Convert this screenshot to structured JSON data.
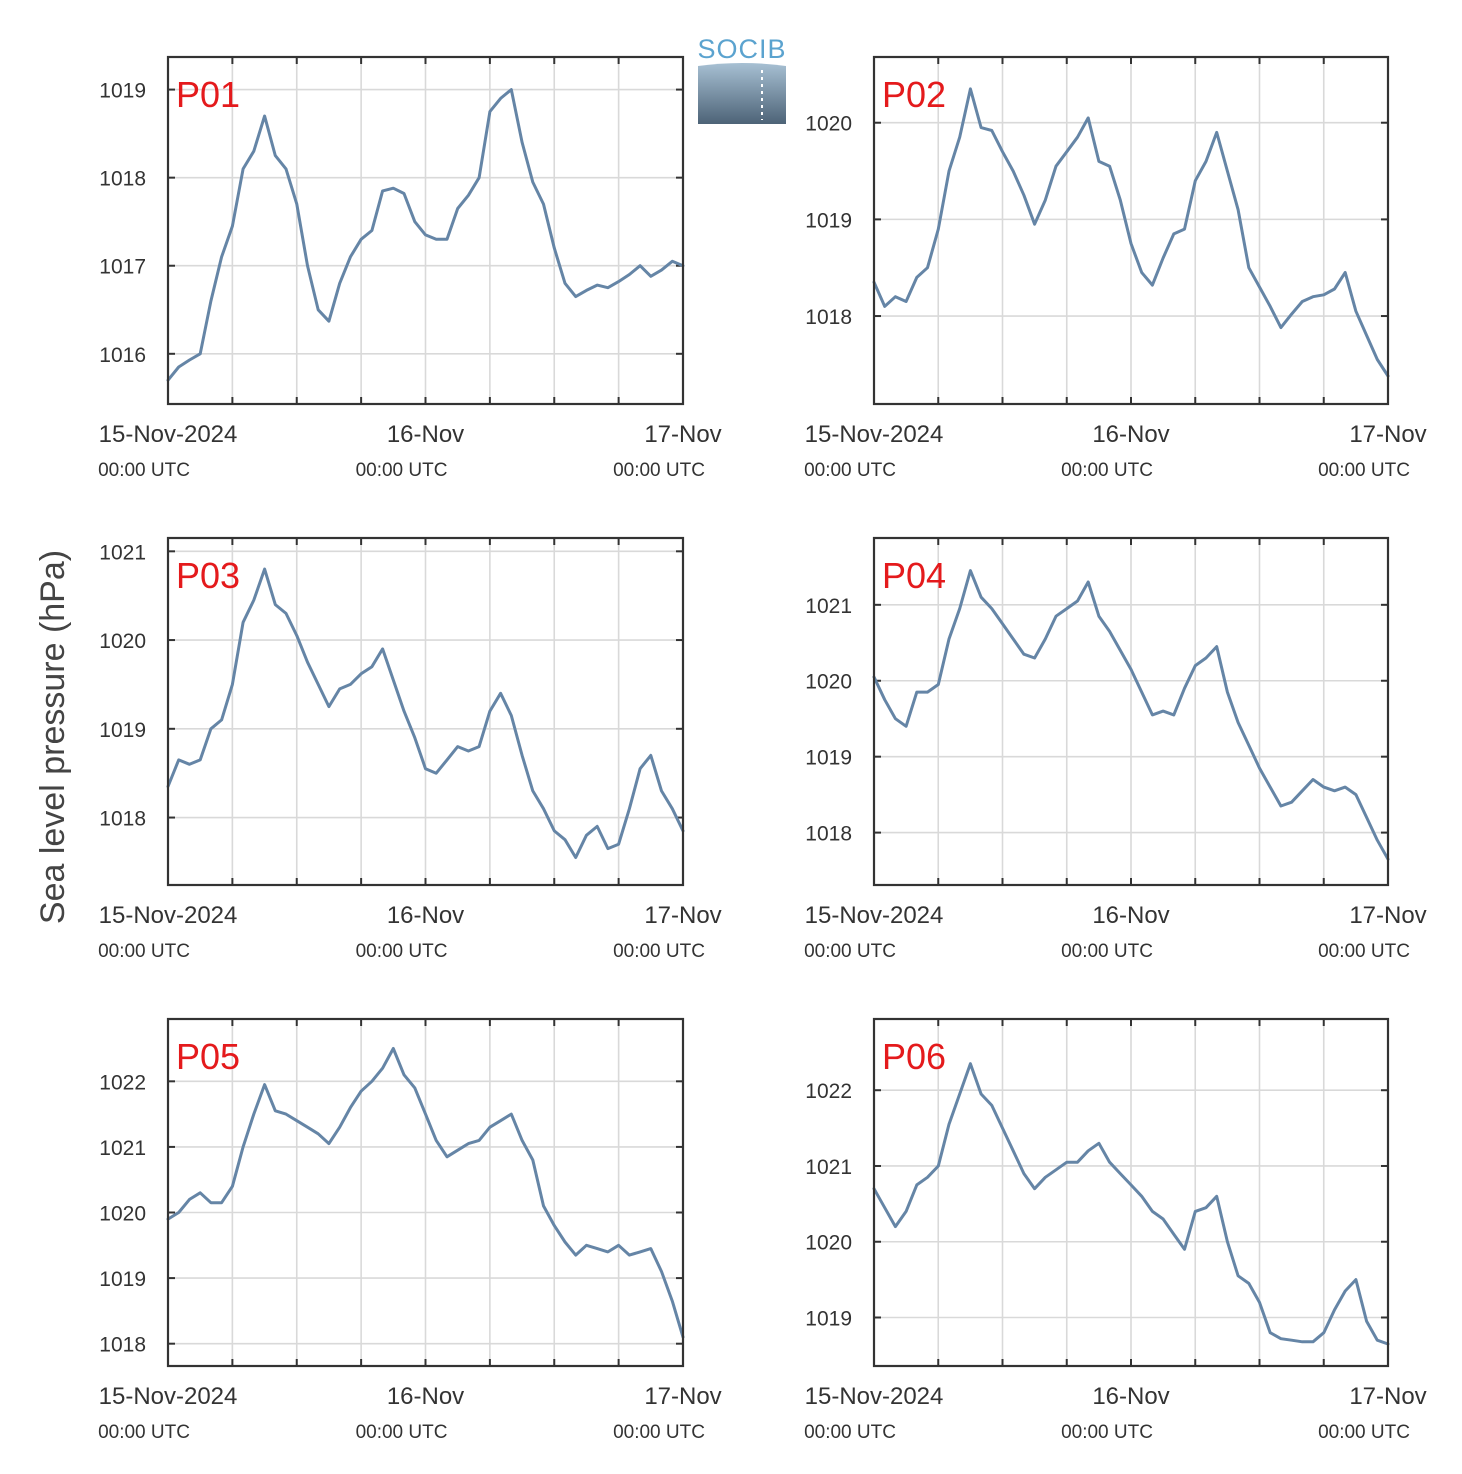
{
  "figure": {
    "ylabel": "Sea level pressure (hPa)",
    "logo_text": "SOCIB"
  },
  "chart_data": [
    {
      "type": "line",
      "title": "P01",
      "xlabel": "",
      "ylabel": "Sea level pressure (hPa)",
      "x_ticks": [
        {
          "label": "15-Nov-2024",
          "sub": "00:00 UTC",
          "hour": 0
        },
        {
          "label": "16-Nov",
          "sub": "00:00 UTC",
          "hour": 24
        },
        {
          "label": "17-Nov",
          "sub": "00:00 UTC",
          "hour": 48
        }
      ],
      "xlim": [
        0,
        48
      ],
      "ylim": [
        1015.43,
        1019.37
      ],
      "yticks": [
        1016,
        1017,
        1018,
        1019
      ],
      "grid": true,
      "series": [
        {
          "x": [
            0,
            1,
            2,
            3,
            4,
            5,
            6,
            7,
            8,
            9,
            10,
            11,
            12,
            13,
            14,
            15,
            16,
            17,
            18,
            19,
            20,
            21,
            22,
            23,
            24,
            25,
            26,
            27,
            28,
            29,
            30,
            31,
            32,
            33,
            34,
            35,
            36,
            37,
            38,
            39,
            40,
            41,
            42,
            43,
            44,
            45,
            46,
            47,
            48
          ],
          "y": [
            1015.7,
            1015.85,
            1015.93,
            1016.0,
            1016.6,
            1017.1,
            1017.45,
            1018.1,
            1018.3,
            1018.7,
            1018.25,
            1018.1,
            1017.7,
            1017.0,
            1016.5,
            1016.37,
            1016.8,
            1017.1,
            1017.3,
            1017.4,
            1017.85,
            1017.88,
            1017.82,
            1017.5,
            1017.35,
            1017.3,
            1017.3,
            1017.65,
            1017.8,
            1018.0,
            1018.75,
            1018.9,
            1019.0,
            1018.4,
            1017.95,
            1017.7,
            1017.2,
            1016.8,
            1016.65,
            1016.72,
            1016.78,
            1016.75,
            1016.82,
            1016.9,
            1017.0,
            1016.88,
            1016.95,
            1017.05,
            1017.0
          ]
        }
      ]
    },
    {
      "type": "line",
      "title": "P02",
      "xlabel": "",
      "ylabel": "Sea level pressure (hPa)",
      "x_ticks": [
        {
          "label": "15-Nov-2024",
          "sub": "00:00 UTC",
          "hour": 0
        },
        {
          "label": "16-Nov",
          "sub": "00:00 UTC",
          "hour": 24
        },
        {
          "label": "17-Nov",
          "sub": "00:00 UTC",
          "hour": 48
        }
      ],
      "xlim": [
        0,
        48
      ],
      "ylim": [
        1017.09,
        1020.68
      ],
      "yticks": [
        1018,
        1019,
        1020
      ],
      "grid": true,
      "series": [
        {
          "x": [
            0,
            1,
            2,
            3,
            4,
            5,
            6,
            7,
            8,
            9,
            10,
            11,
            12,
            13,
            14,
            15,
            16,
            17,
            18,
            19,
            20,
            21,
            22,
            23,
            24,
            25,
            26,
            27,
            28,
            29,
            30,
            31,
            32,
            33,
            34,
            35,
            36,
            37,
            38,
            39,
            40,
            41,
            42,
            43,
            44,
            45,
            46,
            47,
            48
          ],
          "y": [
            1018.35,
            1018.1,
            1018.2,
            1018.15,
            1018.4,
            1018.5,
            1018.9,
            1019.5,
            1019.85,
            1020.35,
            1019.95,
            1019.92,
            1019.7,
            1019.5,
            1019.25,
            1018.95,
            1019.2,
            1019.55,
            1019.7,
            1019.85,
            1020.05,
            1019.6,
            1019.55,
            1019.2,
            1018.75,
            1018.45,
            1018.32,
            1018.6,
            1018.85,
            1018.9,
            1019.4,
            1019.6,
            1019.9,
            1019.5,
            1019.1,
            1018.5,
            1018.3,
            1018.1,
            1017.88,
            1018.02,
            1018.15,
            1018.2,
            1018.22,
            1018.28,
            1018.45,
            1018.05,
            1017.8,
            1017.55,
            1017.38
          ]
        }
      ]
    },
    {
      "type": "line",
      "title": "P03",
      "xlabel": "",
      "ylabel": "Sea level pressure (hPa)",
      "x_ticks": [
        {
          "label": "15-Nov-2024",
          "sub": "00:00 UTC",
          "hour": 0
        },
        {
          "label": "16-Nov",
          "sub": "00:00 UTC",
          "hour": 24
        },
        {
          "label": "17-Nov",
          "sub": "00:00 UTC",
          "hour": 48
        }
      ],
      "xlim": [
        0,
        48
      ],
      "ylim": [
        1017.24,
        1021.15
      ],
      "yticks": [
        1018,
        1019,
        1020,
        1021
      ],
      "grid": true,
      "series": [
        {
          "x": [
            0,
            1,
            2,
            3,
            4,
            5,
            6,
            7,
            8,
            9,
            10,
            11,
            12,
            13,
            14,
            15,
            16,
            17,
            18,
            19,
            20,
            21,
            22,
            23,
            24,
            25,
            26,
            27,
            28,
            29,
            30,
            31,
            32,
            33,
            34,
            35,
            36,
            37,
            38,
            39,
            40,
            41,
            42,
            43,
            44,
            45,
            46,
            47,
            48
          ],
          "y": [
            1018.35,
            1018.65,
            1018.6,
            1018.65,
            1019.0,
            1019.1,
            1019.5,
            1020.2,
            1020.45,
            1020.8,
            1020.4,
            1020.3,
            1020.05,
            1019.75,
            1019.5,
            1019.25,
            1019.45,
            1019.5,
            1019.62,
            1019.7,
            1019.9,
            1019.55,
            1019.2,
            1018.9,
            1018.55,
            1018.5,
            1018.65,
            1018.8,
            1018.75,
            1018.8,
            1019.2,
            1019.4,
            1019.15,
            1018.7,
            1018.3,
            1018.1,
            1017.85,
            1017.75,
            1017.55,
            1017.8,
            1017.9,
            1017.65,
            1017.7,
            1018.1,
            1018.55,
            1018.7,
            1018.3,
            1018.1,
            1017.85
          ]
        }
      ]
    },
    {
      "type": "line",
      "title": "P04",
      "xlabel": "",
      "ylabel": "Sea level pressure (hPa)",
      "x_ticks": [
        {
          "label": "15-Nov-2024",
          "sub": "00:00 UTC",
          "hour": 0
        },
        {
          "label": "16-Nov",
          "sub": "00:00 UTC",
          "hour": 24
        },
        {
          "label": "17-Nov",
          "sub": "00:00 UTC",
          "hour": 48
        }
      ],
      "xlim": [
        0,
        48
      ],
      "ylim": [
        1017.31,
        1021.88
      ],
      "yticks": [
        1018,
        1019,
        1020,
        1021
      ],
      "grid": true,
      "series": [
        {
          "x": [
            0,
            1,
            2,
            3,
            4,
            5,
            6,
            7,
            8,
            9,
            10,
            11,
            12,
            13,
            14,
            15,
            16,
            17,
            18,
            19,
            20,
            21,
            22,
            23,
            24,
            25,
            26,
            27,
            28,
            29,
            30,
            31,
            32,
            33,
            34,
            35,
            36,
            37,
            38,
            39,
            40,
            41,
            42,
            43,
            44,
            45,
            46,
            47,
            48
          ],
          "y": [
            1020.05,
            1019.75,
            1019.5,
            1019.4,
            1019.85,
            1019.85,
            1019.95,
            1020.55,
            1020.95,
            1021.45,
            1021.1,
            1020.95,
            1020.75,
            1020.55,
            1020.35,
            1020.3,
            1020.55,
            1020.85,
            1020.95,
            1021.05,
            1021.3,
            1020.85,
            1020.65,
            1020.4,
            1020.15,
            1019.85,
            1019.55,
            1019.6,
            1019.55,
            1019.9,
            1020.2,
            1020.3,
            1020.45,
            1019.85,
            1019.45,
            1019.15,
            1018.85,
            1018.6,
            1018.35,
            1018.4,
            1018.55,
            1018.7,
            1018.6,
            1018.55,
            1018.6,
            1018.5,
            1018.2,
            1017.9,
            1017.65
          ]
        }
      ]
    },
    {
      "type": "line",
      "title": "P05",
      "xlabel": "",
      "ylabel": "Sea level pressure (hPa)",
      "x_ticks": [
        {
          "label": "15-Nov-2024",
          "sub": "00:00 UTC",
          "hour": 0
        },
        {
          "label": "16-Nov",
          "sub": "00:00 UTC",
          "hour": 24
        },
        {
          "label": "17-Nov",
          "sub": "00:00 UTC",
          "hour": 48
        }
      ],
      "xlim": [
        0,
        48
      ],
      "ylim": [
        1017.66,
        1022.95
      ],
      "yticks": [
        1018,
        1019,
        1020,
        1021,
        1022
      ],
      "grid": true,
      "series": [
        {
          "x": [
            0,
            1,
            2,
            3,
            4,
            5,
            6,
            7,
            8,
            9,
            10,
            11,
            12,
            13,
            14,
            15,
            16,
            17,
            18,
            19,
            20,
            21,
            22,
            23,
            24,
            25,
            26,
            27,
            28,
            29,
            30,
            31,
            32,
            33,
            34,
            35,
            36,
            37,
            38,
            39,
            40,
            41,
            42,
            43,
            44,
            45,
            46,
            47,
            48
          ],
          "y": [
            1019.9,
            1020.0,
            1020.2,
            1020.3,
            1020.15,
            1020.15,
            1020.4,
            1021.0,
            1021.5,
            1021.95,
            1021.55,
            1021.5,
            1021.4,
            1021.3,
            1021.2,
            1021.05,
            1021.3,
            1021.6,
            1021.85,
            1022.0,
            1022.2,
            1022.5,
            1022.1,
            1021.9,
            1021.5,
            1021.1,
            1020.85,
            1020.95,
            1021.05,
            1021.1,
            1021.3,
            1021.4,
            1021.5,
            1021.1,
            1020.8,
            1020.1,
            1019.8,
            1019.55,
            1019.35,
            1019.5,
            1019.45,
            1019.4,
            1019.5,
            1019.35,
            1019.4,
            1019.45,
            1019.1,
            1018.65,
            1018.1
          ]
        }
      ]
    },
    {
      "type": "line",
      "title": "P06",
      "xlabel": "",
      "ylabel": "Sea level pressure (hPa)",
      "x_ticks": [
        {
          "label": "15-Nov-2024",
          "sub": "00:00 UTC",
          "hour": 0
        },
        {
          "label": "16-Nov",
          "sub": "00:00 UTC",
          "hour": 24
        },
        {
          "label": "17-Nov",
          "sub": "00:00 UTC",
          "hour": 48
        }
      ],
      "xlim": [
        0,
        48
      ],
      "ylim": [
        1018.36,
        1022.94
      ],
      "yticks": [
        1019,
        1020,
        1021,
        1022
      ],
      "grid": true,
      "series": [
        {
          "x": [
            0,
            1,
            2,
            3,
            4,
            5,
            6,
            7,
            8,
            9,
            10,
            11,
            12,
            13,
            14,
            15,
            16,
            17,
            18,
            19,
            20,
            21,
            22,
            23,
            24,
            25,
            26,
            27,
            28,
            29,
            30,
            31,
            32,
            33,
            34,
            35,
            36,
            37,
            38,
            39,
            40,
            41,
            42,
            43,
            44,
            45,
            46,
            47,
            48
          ],
          "y": [
            1020.7,
            1020.45,
            1020.2,
            1020.4,
            1020.75,
            1020.85,
            1021.0,
            1021.55,
            1021.95,
            1022.35,
            1021.95,
            1021.8,
            1021.5,
            1021.2,
            1020.9,
            1020.7,
            1020.85,
            1020.95,
            1021.05,
            1021.05,
            1021.2,
            1021.3,
            1021.05,
            1020.9,
            1020.75,
            1020.6,
            1020.4,
            1020.3,
            1020.1,
            1019.9,
            1020.4,
            1020.45,
            1020.6,
            1020.0,
            1019.55,
            1019.45,
            1019.2,
            1018.8,
            1018.72,
            1018.7,
            1018.68,
            1018.68,
            1018.8,
            1019.1,
            1019.35,
            1019.5,
            1018.95,
            1018.7,
            1018.65
          ]
        }
      ]
    }
  ]
}
